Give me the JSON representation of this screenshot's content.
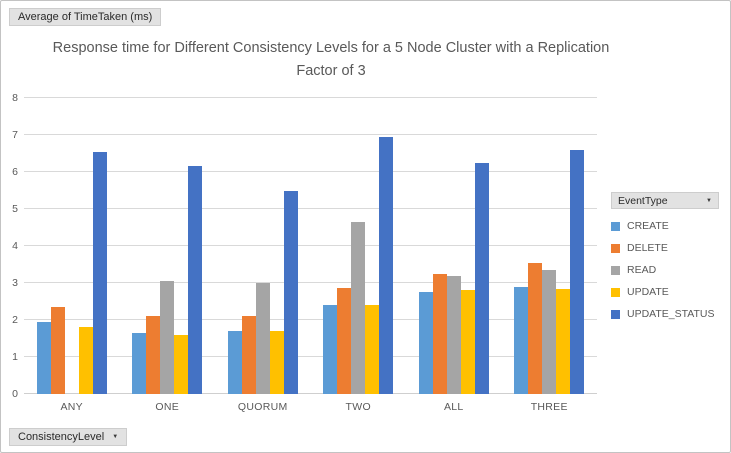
{
  "pivot_buttons": {
    "value_field": "Average of TimeTaken (ms)",
    "axis_field": "ConsistencyLevel",
    "legend_field": "EventType"
  },
  "icons": {
    "dropdown_arrow": "▼"
  },
  "chart_data": {
    "type": "bar",
    "title": "Response time for Different Consistency Levels for a 5 Node Cluster with a Replication Factor of 3",
    "xlabel": "",
    "ylabel": "",
    "categories": [
      "ANY",
      "ONE",
      "QUORUM",
      "TWO",
      "ALL",
      "THREE"
    ],
    "series": [
      {
        "name": "CREATE",
        "color": "#5B9BD5",
        "values": [
          1.95,
          1.65,
          1.7,
          2.4,
          2.75,
          2.9
        ]
      },
      {
        "name": "DELETE",
        "color": "#ED7D31",
        "values": [
          2.35,
          2.1,
          2.1,
          2.87,
          3.25,
          3.55
        ]
      },
      {
        "name": "READ",
        "color": "#A5A5A5",
        "values": [
          null,
          3.05,
          3.0,
          4.65,
          3.2,
          3.35
        ]
      },
      {
        "name": "UPDATE",
        "color": "#FFC000",
        "values": [
          1.8,
          1.6,
          1.7,
          2.4,
          2.8,
          2.85
        ]
      },
      {
        "name": "UPDATE_STATUS",
        "color": "#4472C4",
        "values": [
          6.55,
          6.15,
          5.5,
          6.95,
          6.25,
          6.6
        ]
      }
    ],
    "ylim": [
      0,
      8
    ],
    "ytick_step": 1,
    "grid": true,
    "legend_position": "right"
  }
}
